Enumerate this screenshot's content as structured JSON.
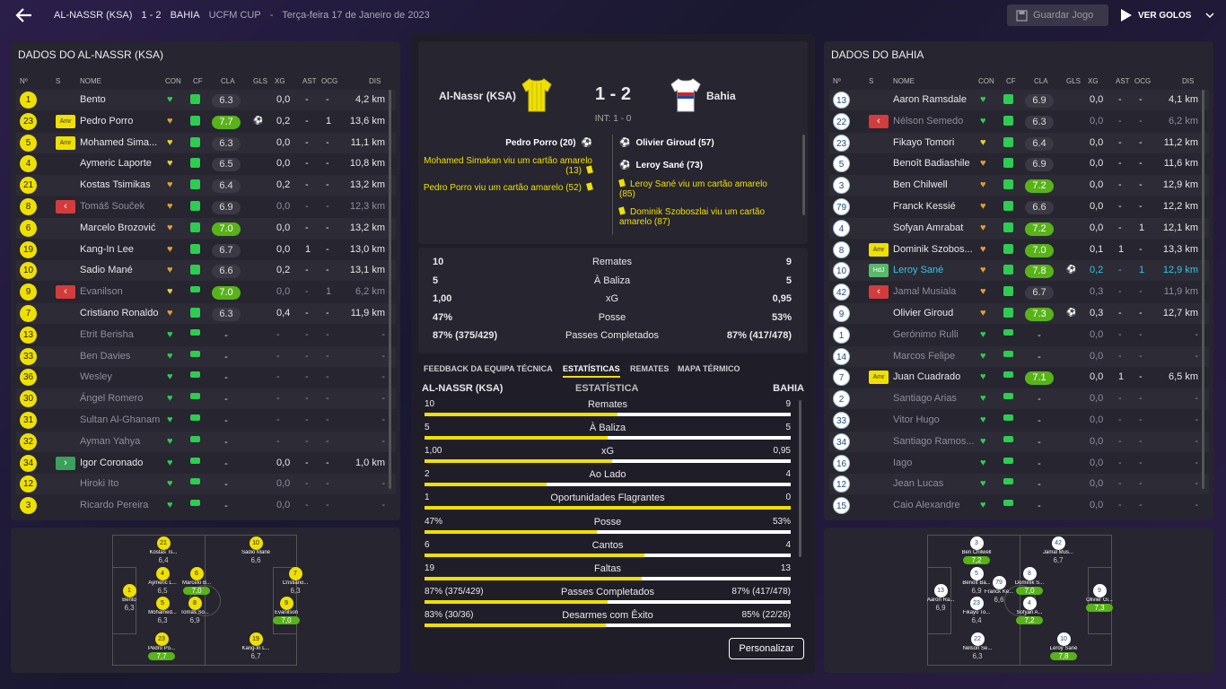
{
  "header": {
    "home_team": "AL-NASSR (KSA)",
    "score": "1 - 2",
    "away_team": "BAHIA",
    "competition": "UCFM CUP",
    "separator": "-",
    "date": "Terça-feira 17 de Janeiro de 2023",
    "save_label": "Guardar Jogo",
    "goals_label": "VER GOLOS"
  },
  "left_panel": {
    "title": "DADOS DO AL-NASSR (KSA)",
    "columns": [
      "Nº",
      "S",
      "NOME",
      "CON",
      "CF",
      "CLA",
      "GLS",
      "XG",
      "AST",
      "OCG",
      "DIS"
    ],
    "players": [
      {
        "num": "1",
        "badge": "",
        "name": "Bento",
        "con": "green",
        "cf": "full",
        "cla": "6.3",
        "cla_hi": false,
        "gls": "",
        "xg": "0,0",
        "ast": "-",
        "ocg": "-",
        "dis": "4,2 km",
        "faded": false
      },
      {
        "num": "23",
        "badge": "Amr",
        "name": "Pedro Porro",
        "con": "orange",
        "cf": "full",
        "cla": "7.7",
        "cla_hi": true,
        "gls": "⚽",
        "xg": "0,2",
        "ast": "-",
        "ocg": "1",
        "dis": "13,6 km",
        "faded": false
      },
      {
        "num": "5",
        "badge": "Amr",
        "name": "Mohamed Sima...",
        "con": "yellow",
        "cf": "full",
        "cla": "6.3",
        "cla_hi": false,
        "gls": "",
        "xg": "0,0",
        "ast": "-",
        "ocg": "-",
        "dis": "11,1 km",
        "faded": false
      },
      {
        "num": "4",
        "badge": "",
        "name": "Aymeric Laporte",
        "con": "yellow",
        "cf": "full",
        "cla": "6.5",
        "cla_hi": false,
        "gls": "",
        "xg": "0,0",
        "ast": "-",
        "ocg": "-",
        "dis": "10,8 km",
        "faded": false
      },
      {
        "num": "21",
        "badge": "",
        "name": "Kostas Tsimikas",
        "con": "orange",
        "cf": "full",
        "cla": "6.4",
        "cla_hi": false,
        "gls": "",
        "xg": "0,2",
        "ast": "-",
        "ocg": "-",
        "dis": "13,2 km",
        "faded": false
      },
      {
        "num": "8",
        "badge": "out",
        "name": "Tomáš Souček",
        "con": "orange",
        "cf": "full",
        "cla": "6.9",
        "cla_hi": false,
        "gls": "",
        "xg": "0,0",
        "ast": "-",
        "ocg": "-",
        "dis": "12,3 km",
        "faded": true
      },
      {
        "num": "6",
        "badge": "",
        "name": "Marcelo Brozović",
        "con": "orange",
        "cf": "full",
        "cla": "7.0",
        "cla_hi": true,
        "gls": "",
        "xg": "0,0",
        "ast": "-",
        "ocg": "-",
        "dis": "13,2 km",
        "faded": false
      },
      {
        "num": "19",
        "badge": "",
        "name": "Kang-In Lee",
        "con": "orange",
        "cf": "full",
        "cla": "6.7",
        "cla_hi": false,
        "gls": "",
        "xg": "0,0",
        "ast": "1",
        "ocg": "-",
        "dis": "13,0 km",
        "faded": false
      },
      {
        "num": "10",
        "badge": "",
        "name": "Sadio Mané",
        "con": "orange",
        "cf": "full",
        "cla": "6.6",
        "cla_hi": false,
        "gls": "",
        "xg": "0,2",
        "ast": "-",
        "ocg": "-",
        "dis": "13,1 km",
        "faded": false
      },
      {
        "num": "9",
        "badge": "out",
        "name": "Evanilson",
        "con": "yellow",
        "cf": "mid",
        "cla": "7.0",
        "cla_hi": true,
        "gls": "",
        "xg": "0,0",
        "ast": "-",
        "ocg": "1",
        "dis": "6,2 km",
        "faded": true
      },
      {
        "num": "7",
        "badge": "",
        "name": "Cristiano Ronaldo",
        "con": "orange",
        "cf": "full",
        "cla": "6.3",
        "cla_hi": false,
        "gls": "",
        "xg": "0,4",
        "ast": "-",
        "ocg": "-",
        "dis": "11,9 km",
        "faded": false
      },
      {
        "num": "13",
        "badge": "",
        "name": "Etrit Berisha",
        "con": "green",
        "cf": "mid",
        "cla": "-",
        "cla_hi": false,
        "gls": "",
        "xg": "-",
        "ast": "-",
        "ocg": "-",
        "dis": "-",
        "faded": true
      },
      {
        "num": "33",
        "badge": "",
        "name": "Ben Davies",
        "con": "green",
        "cf": "mid",
        "cla": "-",
        "cla_hi": false,
        "gls": "",
        "xg": "-",
        "ast": "-",
        "ocg": "-",
        "dis": "-",
        "faded": true
      },
      {
        "num": "36",
        "badge": "",
        "name": "Wesley",
        "con": "green",
        "cf": "mid",
        "cla": "-",
        "cla_hi": false,
        "gls": "",
        "xg": "-",
        "ast": "-",
        "ocg": "-",
        "dis": "-",
        "faded": true
      },
      {
        "num": "30",
        "badge": "",
        "name": "Ángel Romero",
        "con": "green",
        "cf": "mid",
        "cla": "-",
        "cla_hi": false,
        "gls": "",
        "xg": "-",
        "ast": "-",
        "ocg": "-",
        "dis": "-",
        "faded": true
      },
      {
        "num": "31",
        "badge": "",
        "name": "Sultan Al-Ghanam",
        "con": "green",
        "cf": "mid",
        "cla": "-",
        "cla_hi": false,
        "gls": "",
        "xg": "-",
        "ast": "-",
        "ocg": "-",
        "dis": "-",
        "faded": true
      },
      {
        "num": "32",
        "badge": "",
        "name": "Ayman Yahya",
        "con": "green",
        "cf": "mid",
        "cla": "-",
        "cla_hi": false,
        "gls": "",
        "xg": "-",
        "ast": "-",
        "ocg": "-",
        "dis": "-",
        "faded": true
      },
      {
        "num": "34",
        "badge": "in",
        "name": "Igor Coronado",
        "con": "green",
        "cf": "mid",
        "cla": "-",
        "cla_hi": false,
        "gls": "",
        "xg": "0,0",
        "ast": "-",
        "ocg": "-",
        "dis": "1,0 km",
        "faded": false
      },
      {
        "num": "12",
        "badge": "",
        "name": "Hiroki Ito",
        "con": "green",
        "cf": "mid",
        "cla": "-",
        "cla_hi": false,
        "gls": "",
        "xg": "0,0",
        "ast": "-",
        "ocg": "-",
        "dis": "-",
        "faded": true
      },
      {
        "num": "3",
        "badge": "",
        "name": "Ricardo Pereira",
        "con": "green",
        "cf": "mid",
        "cla": "-",
        "cla_hi": false,
        "gls": "",
        "xg": "0,0",
        "ast": "-",
        "ocg": "-",
        "dis": "-",
        "faded": true
      }
    ]
  },
  "right_panel": {
    "title": "DADOS DO BAHIA",
    "columns": [
      "Nº",
      "S",
      "NOME",
      "CON",
      "CF",
      "CLA",
      "GLS",
      "XG",
      "AST",
      "OCG",
      "DIS"
    ],
    "players": [
      {
        "num": "13",
        "badge": "",
        "name": "Aaron Ramsdale",
        "con": "green",
        "cf": "full",
        "cla": "6.9",
        "cla_hi": false,
        "gls": "",
        "xg": "0,0",
        "ast": "-",
        "ocg": "-",
        "dis": "4,1 km",
        "faded": false
      },
      {
        "num": "22",
        "badge": "out",
        "name": "Nélson Semedo",
        "con": "green",
        "cf": "full",
        "cla": "6.3",
        "cla_hi": false,
        "gls": "",
        "xg": "0,0",
        "ast": "-",
        "ocg": "-",
        "dis": "6,2 km",
        "faded": true
      },
      {
        "num": "23",
        "badge": "",
        "name": "Fikayo Tomori",
        "con": "yellow",
        "cf": "full",
        "cla": "6.4",
        "cla_hi": false,
        "gls": "",
        "xg": "0,0",
        "ast": "-",
        "ocg": "-",
        "dis": "11,2 km",
        "faded": false
      },
      {
        "num": "5",
        "badge": "",
        "name": "Benoît Badiashile",
        "con": "orange",
        "cf": "full",
        "cla": "6.9",
        "cla_hi": false,
        "gls": "",
        "xg": "0,0",
        "ast": "-",
        "ocg": "-",
        "dis": "11,6 km",
        "faded": false
      },
      {
        "num": "3",
        "badge": "",
        "name": "Ben Chilwell",
        "con": "orange",
        "cf": "full",
        "cla": "7.2",
        "cla_hi": true,
        "gls": "",
        "xg": "0,0",
        "ast": "-",
        "ocg": "-",
        "dis": "12,9 km",
        "faded": false
      },
      {
        "num": "79",
        "badge": "",
        "name": "Franck Kessié",
        "con": "orange",
        "cf": "full",
        "cla": "6.6",
        "cla_hi": false,
        "gls": "",
        "xg": "0,0",
        "ast": "-",
        "ocg": "-",
        "dis": "12,2 km",
        "faded": false
      },
      {
        "num": "4",
        "badge": "",
        "name": "Sofyan Amrabat",
        "con": "orange",
        "cf": "full",
        "cla": "7.2",
        "cla_hi": true,
        "gls": "",
        "xg": "0,0",
        "ast": "-",
        "ocg": "1",
        "dis": "12,1 km",
        "faded": false
      },
      {
        "num": "8",
        "badge": "Amr",
        "name": "Dominik Szobos...",
        "con": "orange",
        "cf": "full",
        "cla": "7.0",
        "cla_hi": true,
        "gls": "",
        "xg": "0,1",
        "ast": "1",
        "ocg": "-",
        "dis": "13,3 km",
        "faded": false
      },
      {
        "num": "10",
        "badge": "HdJ",
        "name": "Leroy Sané",
        "con": "orange",
        "cf": "full",
        "cla": "7.8",
        "cla_hi": true,
        "gls": "⚽",
        "xg": "0,2",
        "ast": "-",
        "ocg": "1",
        "dis": "12,9 km",
        "faded": false,
        "highlight": true
      },
      {
        "num": "42",
        "badge": "out",
        "name": "Jamal Musiala",
        "con": "orange",
        "cf": "full",
        "cla": "6.7",
        "cla_hi": false,
        "gls": "",
        "xg": "0,3",
        "ast": "-",
        "ocg": "-",
        "dis": "11,9 km",
        "faded": true
      },
      {
        "num": "9",
        "badge": "",
        "name": "Olivier Giroud",
        "con": "orange",
        "cf": "full",
        "cla": "7.3",
        "cla_hi": true,
        "gls": "⚽",
        "xg": "0,3",
        "ast": "-",
        "ocg": "-",
        "dis": "12,7 km",
        "faded": false
      },
      {
        "num": "1",
        "badge": "",
        "name": "Gerónimo Rulli",
        "con": "green",
        "cf": "mid",
        "cla": "-",
        "cla_hi": false,
        "gls": "",
        "xg": "0,0",
        "ast": "-",
        "ocg": "-",
        "dis": "-",
        "faded": true
      },
      {
        "num": "14",
        "badge": "",
        "name": "Marcos Felipe",
        "con": "green",
        "cf": "mid",
        "cla": "-",
        "cla_hi": false,
        "gls": "",
        "xg": "0,0",
        "ast": "-",
        "ocg": "-",
        "dis": "-",
        "faded": true
      },
      {
        "num": "7",
        "badge": "Amr",
        "name": "Juan Cuadrado",
        "con": "green",
        "cf": "mid",
        "cla": "7.1",
        "cla_hi": true,
        "gls": "",
        "xg": "0,0",
        "ast": "1",
        "ocg": "-",
        "dis": "6,5 km",
        "faded": false
      },
      {
        "num": "2",
        "badge": "",
        "name": "Santiago Arias",
        "con": "green",
        "cf": "mid",
        "cla": "-",
        "cla_hi": false,
        "gls": "",
        "xg": "0,0",
        "ast": "-",
        "ocg": "-",
        "dis": "-",
        "faded": true
      },
      {
        "num": "33",
        "badge": "",
        "name": "Vitor Hugo",
        "con": "green",
        "cf": "mid",
        "cla": "-",
        "cla_hi": false,
        "gls": "",
        "xg": "0,0",
        "ast": "-",
        "ocg": "-",
        "dis": "-",
        "faded": true
      },
      {
        "num": "34",
        "badge": "",
        "name": "Santiago Ramos...",
        "con": "green",
        "cf": "mid",
        "cla": "-",
        "cla_hi": false,
        "gls": "",
        "xg": "0,0",
        "ast": "-",
        "ocg": "-",
        "dis": "-",
        "faded": true
      },
      {
        "num": "16",
        "badge": "",
        "name": "Iago",
        "con": "green",
        "cf": "mid",
        "cla": "-",
        "cla_hi": false,
        "gls": "",
        "xg": "0,0",
        "ast": "-",
        "ocg": "-",
        "dis": "-",
        "faded": true
      },
      {
        "num": "12",
        "badge": "",
        "name": "Jean Lucas",
        "con": "green",
        "cf": "mid",
        "cla": "-",
        "cla_hi": false,
        "gls": "",
        "xg": "0,0",
        "ast": "-",
        "ocg": "-",
        "dis": "-",
        "faded": true
      },
      {
        "num": "15",
        "badge": "",
        "name": "Caio Alexandre",
        "con": "green",
        "cf": "mid",
        "cla": "-",
        "cla_hi": false,
        "gls": "",
        "xg": "0,0",
        "ast": "-",
        "ocg": "-",
        "dis": "-",
        "faded": true
      }
    ]
  },
  "scoreboard": {
    "home": "Al-Nassr (KSA)",
    "away": "Bahia",
    "score": "1 - 2",
    "halftime": "INT: 1 - 0",
    "home_events": [
      {
        "text": "Pedro Porro (20)",
        "type": "goal"
      },
      {
        "text": "Mohamed Simakan viu um cartão amarelo (13)",
        "type": "card"
      },
      {
        "text": "Pedro Porro viu um cartão amarelo (52)",
        "type": "card"
      }
    ],
    "away_events": [
      {
        "text": "Olivier Giroud (57)",
        "type": "goal"
      },
      {
        "text": "Leroy Sané (73)",
        "type": "goal"
      },
      {
        "text": "Leroy Sané viu um cartão amarelo (85)",
        "type": "card"
      },
      {
        "text": "Dominik Szoboszlai viu um cartão amarelo (87)",
        "type": "card"
      }
    ]
  },
  "summary": [
    {
      "home": "10",
      "label": "Remates",
      "away": "9"
    },
    {
      "home": "5",
      "label": "À Baliza",
      "away": "5"
    },
    {
      "home": "1,00",
      "label": "xG",
      "away": "0,95"
    },
    {
      "home": "47%",
      "label": "Posse",
      "away": "53%"
    },
    {
      "home": "87% (375/429)",
      "label": "Passes Completados",
      "away": "87% (417/478)"
    }
  ],
  "tabs": [
    "FEEDBACK DA EQUIPA TÉCNICA",
    "ESTATÍSTICAS",
    "REMATES",
    "MAPA TÉRMICO"
  ],
  "stats_header": {
    "home": "AL-NASSR (KSA)",
    "mid": "ESTATÍSTICA",
    "away": "BAHIA"
  },
  "stats": [
    {
      "home": "10",
      "label": "Remates",
      "away": "9",
      "share": 0.526
    },
    {
      "home": "5",
      "label": "À Baliza",
      "away": "5",
      "share": 0.5
    },
    {
      "home": "1,00",
      "label": "xG",
      "away": "0,95",
      "share": 0.513
    },
    {
      "home": "2",
      "label": "Ao Lado",
      "away": "4",
      "share": 0.333
    },
    {
      "home": "1",
      "label": "Oportunidades Flagrantes",
      "away": "0",
      "share": 1.0
    },
    {
      "home": "47%",
      "label": "Posse",
      "away": "53%",
      "share": 0.47
    },
    {
      "home": "6",
      "label": "Cantos",
      "away": "4",
      "share": 0.6
    },
    {
      "home": "19",
      "label": "Faltas",
      "away": "13",
      "share": 0.594
    },
    {
      "home": "87% (375/429)",
      "label": "Passes Completados",
      "away": "87% (417/478)",
      "share": 0.5
    },
    {
      "home": "83% (30/36)",
      "label": "Desarmes com Êxito",
      "away": "85% (22/26)",
      "share": 0.494
    }
  ],
  "customize_label": "Personalizar",
  "home_pitch": [
    {
      "num": "1",
      "name": "Bento",
      "rating": "6,3",
      "hi": false
    },
    {
      "num": "21",
      "name": "Kostas Ts...",
      "rating": "6,4",
      "hi": false
    },
    {
      "num": "4",
      "name": "Aymeric L...",
      "rating": "6,5",
      "hi": false
    },
    {
      "num": "5",
      "name": "Mohamed...",
      "rating": "6,3",
      "hi": false
    },
    {
      "num": "23",
      "name": "Pedro Po...",
      "rating": "7,7",
      "hi": true
    },
    {
      "num": "6",
      "name": "Marcelo B...",
      "rating": "7,0",
      "hi": true
    },
    {
      "num": "8",
      "name": "Tomáš So...",
      "rating": "6,9",
      "hi": false
    },
    {
      "num": "10",
      "name": "Sadio Mané",
      "rating": "6,6",
      "hi": false
    },
    {
      "num": "19",
      "name": "Kang-In L...",
      "rating": "6,7",
      "hi": false
    },
    {
      "num": "7",
      "name": "Cristiano...",
      "rating": "6,3",
      "hi": false
    },
    {
      "num": "9",
      "name": "Evanilson",
      "rating": "7,0",
      "hi": true
    }
  ],
  "away_pitch": [
    {
      "num": "13",
      "name": "Aaron Ra...",
      "rating": "6,9",
      "hi": false
    },
    {
      "num": "3",
      "name": "Ben Chilwell",
      "rating": "7,2",
      "hi": true
    },
    {
      "num": "5",
      "name": "Benoît Ba...",
      "rating": "6,9",
      "hi": false
    },
    {
      "num": "23",
      "name": "Fikayo To...",
      "rating": "6,4",
      "hi": false
    },
    {
      "num": "22",
      "name": "Nélson Se...",
      "rating": "6,3",
      "hi": false
    },
    {
      "num": "79",
      "name": "Franck Ke...",
      "rating": "6,6",
      "hi": false
    },
    {
      "num": "8",
      "name": "Dominik S...",
      "rating": "7,0",
      "hi": true
    },
    {
      "num": "4",
      "name": "Sofyan A...",
      "rating": "7,2",
      "hi": true
    },
    {
      "num": "42",
      "name": "Jamal Mus...",
      "rating": "6,7",
      "hi": false
    },
    {
      "num": "10",
      "name": "Leroy Sané",
      "rating": "7,8",
      "hi": true
    },
    {
      "num": "9",
      "name": "Olivier Gi...",
      "rating": "7,3",
      "hi": true
    }
  ],
  "colors": {
    "accent": "#f0e000",
    "rating_good": "#58b319",
    "sub_out": "#d23c3c",
    "sub_in": "#3aa05a",
    "highlight_text": "#35c6e8"
  }
}
